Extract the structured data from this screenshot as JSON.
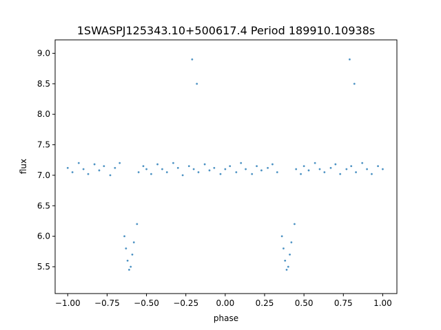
{
  "chart_data": {
    "type": "scatter",
    "title": "1SWASPJ125343.10+500617.4 Period 189910.10938s",
    "xlabel": "phase",
    "ylabel": "flux",
    "xlim": [
      -1.08,
      1.09
    ],
    "ylim": [
      5.06,
      9.22
    ],
    "xticks": [
      -1.0,
      -0.75,
      -0.5,
      -0.25,
      0.0,
      0.25,
      0.5,
      0.75,
      1.0
    ],
    "xtick_labels": [
      "−1.00",
      "−0.75",
      "−0.50",
      "−0.25",
      "0.00",
      "0.25",
      "0.50",
      "0.75",
      "1.00"
    ],
    "yticks": [
      5.5,
      6.0,
      6.5,
      7.0,
      7.5,
      8.0,
      8.5,
      9.0
    ],
    "ytick_labels": [
      "5.5",
      "6.0",
      "6.5",
      "7.0",
      "7.5",
      "8.0",
      "8.5",
      "9.0"
    ],
    "grid": false,
    "legend": "none",
    "marker_color": "#1f77b4",
    "series": [
      {
        "points": [
          [
            -1.0,
            7.12
          ],
          [
            -0.97,
            7.05
          ],
          [
            -0.93,
            7.2
          ],
          [
            -0.9,
            7.1
          ],
          [
            -0.87,
            7.02
          ],
          [
            -0.83,
            7.18
          ],
          [
            -0.8,
            7.08
          ],
          [
            -0.77,
            7.15
          ],
          [
            -0.73,
            7.0
          ],
          [
            -0.7,
            7.12
          ],
          [
            -0.67,
            7.2
          ],
          [
            -0.64,
            6.0
          ],
          [
            -0.63,
            5.8
          ],
          [
            -0.62,
            5.6
          ],
          [
            -0.61,
            5.45
          ],
          [
            -0.6,
            5.5
          ],
          [
            -0.59,
            5.7
          ],
          [
            -0.58,
            5.9
          ],
          [
            -0.56,
            6.2
          ],
          [
            -0.55,
            7.05
          ],
          [
            -0.52,
            7.15
          ],
          [
            -0.5,
            7.1
          ],
          [
            -0.47,
            7.02
          ],
          [
            -0.43,
            7.18
          ],
          [
            -0.4,
            7.1
          ],
          [
            -0.37,
            7.05
          ],
          [
            -0.33,
            7.2
          ],
          [
            -0.3,
            7.12
          ],
          [
            -0.27,
            7.0
          ],
          [
            -0.23,
            7.15
          ],
          [
            -0.21,
            8.9
          ],
          [
            -0.2,
            7.1
          ],
          [
            -0.18,
            8.5
          ],
          [
            -0.17,
            7.05
          ],
          [
            -0.13,
            7.18
          ],
          [
            -0.1,
            7.08
          ],
          [
            -0.07,
            7.12
          ],
          [
            -0.03,
            7.02
          ],
          [
            0.0,
            7.1
          ],
          [
            0.03,
            7.15
          ],
          [
            0.07,
            7.05
          ],
          [
            0.1,
            7.2
          ],
          [
            0.13,
            7.1
          ],
          [
            0.17,
            7.02
          ],
          [
            0.2,
            7.15
          ],
          [
            0.23,
            7.08
          ],
          [
            0.27,
            7.12
          ],
          [
            0.3,
            7.18
          ],
          [
            0.33,
            7.05
          ],
          [
            0.36,
            6.0
          ],
          [
            0.37,
            5.8
          ],
          [
            0.38,
            5.6
          ],
          [
            0.39,
            5.45
          ],
          [
            0.4,
            5.5
          ],
          [
            0.41,
            5.7
          ],
          [
            0.42,
            5.9
          ],
          [
            0.44,
            6.2
          ],
          [
            0.45,
            7.1
          ],
          [
            0.48,
            7.02
          ],
          [
            0.5,
            7.15
          ],
          [
            0.53,
            7.08
          ],
          [
            0.57,
            7.2
          ],
          [
            0.6,
            7.1
          ],
          [
            0.63,
            7.05
          ],
          [
            0.67,
            7.12
          ],
          [
            0.7,
            7.18
          ],
          [
            0.73,
            7.02
          ],
          [
            0.77,
            7.1
          ],
          [
            0.79,
            8.9
          ],
          [
            0.8,
            7.15
          ],
          [
            0.82,
            8.5
          ],
          [
            0.83,
            7.05
          ],
          [
            0.87,
            7.2
          ],
          [
            0.9,
            7.1
          ],
          [
            0.93,
            7.02
          ],
          [
            0.97,
            7.15
          ],
          [
            1.0,
            7.1
          ]
        ]
      }
    ]
  }
}
